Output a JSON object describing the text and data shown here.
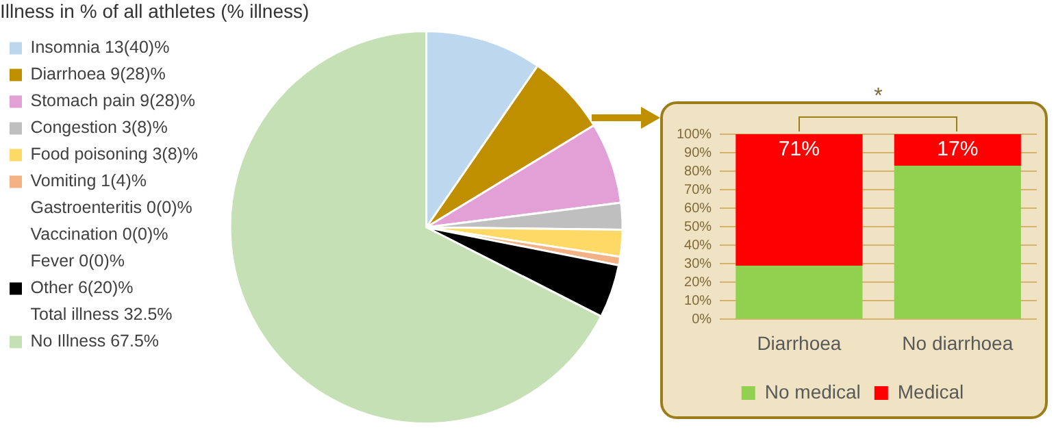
{
  "chart_data": [
    {
      "type": "pie",
      "title": "Illness in % of all athletes (% illness)",
      "categories": [
        "Insomnia 13(40)%",
        "Diarrhoea 9(28)%",
        "Stomach pain 9(28)%",
        "Congestion 3(8)%",
        "Food poisoning 3(8)%",
        "Vomiting 1(4)%",
        "Gastroenteritis 0(0)%",
        "Vaccination 0(0)%",
        "Fever 0(0)%",
        "Other 6(20)%",
        "No Illness 67.5%"
      ],
      "values": [
        9.6,
        6.7,
        6.7,
        2.2,
        2.2,
        0.7,
        0,
        0,
        0,
        4.4,
        67.5
      ],
      "colors": [
        "#bdd7ee",
        "#bf8f00",
        "#e2a0d6",
        "#bfbfbf",
        "#ffd966",
        "#f4b183",
        "#ffffff",
        "#ffffff",
        "#ffffff",
        "#000000",
        "#c5e0b4"
      ],
      "annotations": [
        "Total illness 32.5%"
      ],
      "legend": "left"
    },
    {
      "type": "bar",
      "stacked": true,
      "categories": [
        "Diarrhoea",
        "No diarrhoea"
      ],
      "series": [
        {
          "name": "No medical",
          "color": "#92d050",
          "values": [
            29,
            83
          ]
        },
        {
          "name": "Medical",
          "color": "#ff0000",
          "values": [
            71,
            17
          ],
          "value_labels": [
            "71%",
            "17%"
          ]
        }
      ],
      "ylim": [
        0,
        100
      ],
      "yticks": [
        {
          "value": 0,
          "label": "0%"
        },
        {
          "value": 10,
          "label": "10%"
        },
        {
          "value": 20,
          "label": "20%"
        },
        {
          "value": 30,
          "label": "30%"
        },
        {
          "value": 40,
          "label": "40%"
        },
        {
          "value": 50,
          "label": "50%"
        },
        {
          "value": 60,
          "label": "60%"
        },
        {
          "value": 70,
          "label": "70%"
        },
        {
          "value": 80,
          "label": "80%"
        },
        {
          "value": 90,
          "label": "90%"
        },
        {
          "value": 100,
          "label": "100%"
        }
      ],
      "grid": "y",
      "legend": "bottom",
      "annotations": [
        "*"
      ]
    }
  ]
}
